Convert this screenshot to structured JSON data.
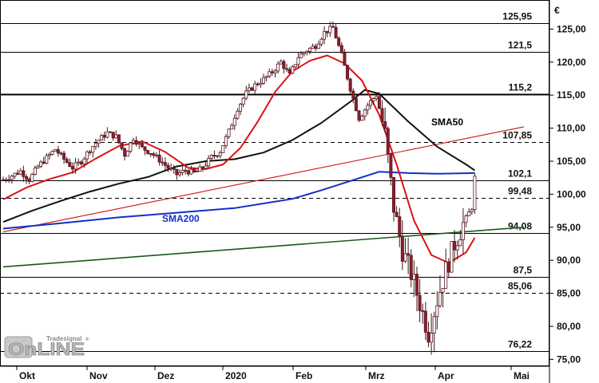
{
  "chart_data": {
    "type": "candlestick",
    "currency": "€",
    "x_ticks": [
      "Okt",
      "Nov",
      "Dez",
      "2020",
      "Feb",
      "Mrz",
      "Apr",
      "Mai"
    ],
    "y_ticks": [
      "125,00",
      "120,00",
      "115,00",
      "110,00",
      "105,00",
      "100,00",
      "95,00",
      "90,00",
      "85,00",
      "80,00",
      "75,00"
    ],
    "y_tick_values": [
      125,
      120,
      115,
      110,
      105,
      100,
      95,
      90,
      85,
      80,
      75
    ],
    "ylim": [
      74,
      127
    ],
    "levels": [
      {
        "label": "125,95",
        "value": 125.95,
        "style": "solid"
      },
      {
        "label": "121,5",
        "value": 121.5,
        "style": "solid"
      },
      {
        "label": "115,2",
        "value": 115.2,
        "style": "solid-thick"
      },
      {
        "label": "107,85",
        "value": 107.85,
        "style": "dashed"
      },
      {
        "label": "102,1",
        "value": 102.1,
        "style": "solid"
      },
      {
        "label": "99,48",
        "value": 99.48,
        "style": "dashed"
      },
      {
        "label": "94,08",
        "value": 94.08,
        "style": "solid"
      },
      {
        "label": "87,5",
        "value": 87.5,
        "style": "solid"
      },
      {
        "label": "85,06",
        "value": 85.06,
        "style": "dashed"
      },
      {
        "label": "76,22",
        "value": 76.22,
        "style": "solid"
      }
    ],
    "annotations": [
      {
        "text": "SMA50",
        "color": "#000000"
      },
      {
        "text": "SMA200",
        "color": "#1030c8"
      }
    ],
    "trendlines": [
      {
        "name": "red-trend",
        "color": "#cc1111",
        "from": [
          0,
          94.3
        ],
        "to": [
          180,
          110.2
        ]
      },
      {
        "name": "green-trend",
        "color": "#1a5a1a",
        "from": [
          0,
          89.0
        ],
        "to": [
          180,
          95.0
        ]
      }
    ],
    "series": [
      {
        "name": "SMA50",
        "color": "#111111",
        "points": [
          [
            0,
            95.8
          ],
          [
            10,
            97.5
          ],
          [
            20,
            99.0
          ],
          [
            30,
            100.4
          ],
          [
            40,
            101.6
          ],
          [
            50,
            102.6
          ],
          [
            55,
            103.4
          ],
          [
            60,
            104.2
          ],
          [
            70,
            105.0
          ],
          [
            80,
            105.3
          ],
          [
            90,
            106.3
          ],
          [
            100,
            108.2
          ],
          [
            110,
            110.8
          ],
          [
            120,
            114.0
          ],
          [
            125,
            115.8
          ],
          [
            130,
            115.2
          ],
          [
            140,
            111.0
          ],
          [
            150,
            107.2
          ],
          [
            160,
            104.5
          ],
          [
            163,
            103.6
          ]
        ]
      },
      {
        "name": "SMA200",
        "color": "#1030c8",
        "points": [
          [
            0,
            94.8
          ],
          [
            20,
            95.6
          ],
          [
            40,
            96.5
          ],
          [
            60,
            97.2
          ],
          [
            80,
            97.9
          ],
          [
            100,
            99.3
          ],
          [
            110,
            100.6
          ],
          [
            120,
            102.0
          ],
          [
            130,
            103.4
          ],
          [
            140,
            103.2
          ],
          [
            150,
            103.1
          ],
          [
            163,
            103.2
          ]
        ]
      },
      {
        "name": "SMA20",
        "color": "#dd1111",
        "points": [
          [
            0,
            99.2
          ],
          [
            8,
            101.0
          ],
          [
            16,
            102.3
          ],
          [
            24,
            103.3
          ],
          [
            32,
            105.4
          ],
          [
            40,
            107.3
          ],
          [
            48,
            108.0
          ],
          [
            56,
            106.4
          ],
          [
            64,
            104.0
          ],
          [
            70,
            103.8
          ],
          [
            76,
            104.5
          ],
          [
            82,
            107.0
          ],
          [
            88,
            111.0
          ],
          [
            94,
            115.5
          ],
          [
            100,
            118.6
          ],
          [
            106,
            120.2
          ],
          [
            112,
            121.0
          ],
          [
            118,
            119.8
          ],
          [
            124,
            117.2
          ],
          [
            130,
            112.0
          ],
          [
            136,
            104.5
          ],
          [
            142,
            96.0
          ],
          [
            148,
            90.8
          ],
          [
            154,
            89.6
          ],
          [
            160,
            91.2
          ],
          [
            163,
            93.4
          ]
        ]
      },
      {
        "name": "price",
        "color": "#8b1e2e",
        "points": [
          [
            0,
            102.2
          ],
          [
            3,
            102.8
          ],
          [
            6,
            103.5
          ],
          [
            9,
            102.2
          ],
          [
            12,
            104.2
          ],
          [
            15,
            105.5
          ],
          [
            18,
            106.8
          ],
          [
            21,
            105.3
          ],
          [
            24,
            104.0
          ],
          [
            27,
            105.0
          ],
          [
            30,
            106.8
          ],
          [
            33,
            108.2
          ],
          [
            36,
            109.3
          ],
          [
            39,
            108.7
          ],
          [
            42,
            106.0
          ],
          [
            45,
            108.5
          ],
          [
            48,
            107.0
          ],
          [
            51,
            106.3
          ],
          [
            54,
            105.2
          ],
          [
            57,
            104.0
          ],
          [
            60,
            103.0
          ],
          [
            63,
            103.6
          ],
          [
            66,
            103.2
          ],
          [
            69,
            104.0
          ],
          [
            72,
            105.6
          ],
          [
            75,
            106.5
          ],
          [
            78,
            109.5
          ],
          [
            81,
            113.0
          ],
          [
            84,
            115.3
          ],
          [
            87,
            116.5
          ],
          [
            90,
            117.4
          ],
          [
            93,
            118.5
          ],
          [
            96,
            120.0
          ],
          [
            99,
            118.0
          ],
          [
            102,
            120.8
          ],
          [
            105,
            121.8
          ],
          [
            108,
            122.5
          ],
          [
            111,
            124.5
          ],
          [
            114,
            125.2
          ],
          [
            117,
            121.0
          ],
          [
            120,
            116.0
          ],
          [
            123,
            111.5
          ],
          [
            126,
            113.5
          ],
          [
            129,
            115.0
          ],
          [
            132,
            109.0
          ],
          [
            135,
            98.0
          ],
          [
            138,
            91.5
          ],
          [
            141,
            88.0
          ],
          [
            144,
            83.5
          ],
          [
            147,
            79.0
          ],
          [
            150,
            84.0
          ],
          [
            153,
            88.5
          ],
          [
            156,
            92.5
          ],
          [
            159,
            95.5
          ],
          [
            162,
            98.0
          ],
          [
            163,
            102.5
          ]
        ]
      }
    ]
  },
  "logo": {
    "brand": "Tradesignal",
    "word": "OnLINE",
    "registered": "®"
  }
}
